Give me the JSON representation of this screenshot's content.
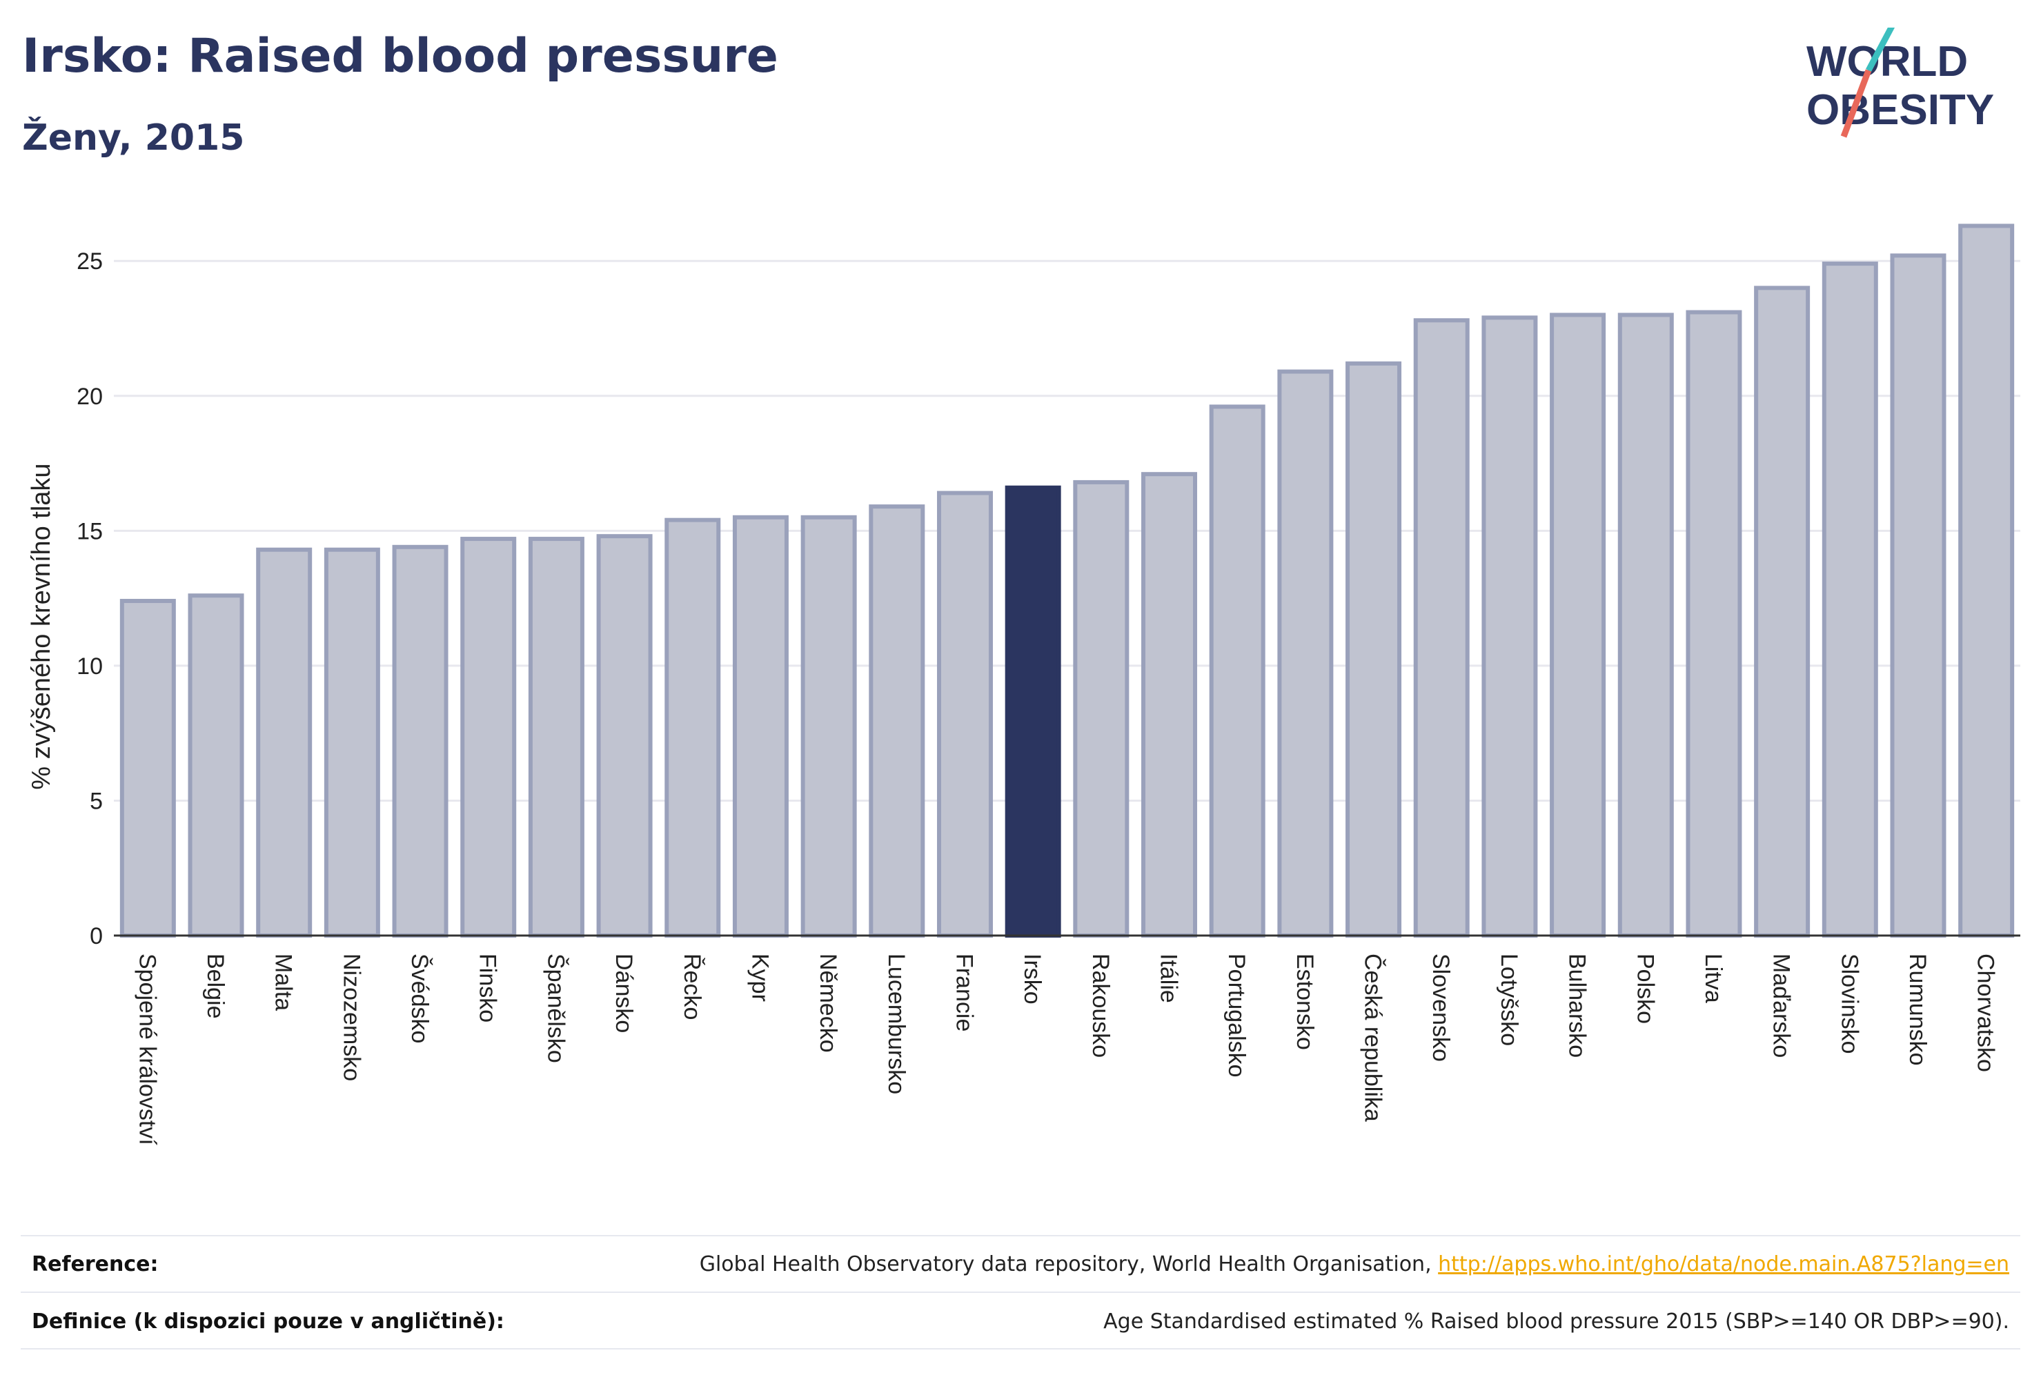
{
  "header": {
    "title": "Irsko: Raised blood pressure",
    "subtitle": "Ženy, 2015"
  },
  "logo": {
    "line1": "WORLD",
    "line2": "OBESITY",
    "colors": {
      "text": "#2b3560",
      "slash_teal": "#3cbfbf",
      "slash_coral": "#e8685a"
    }
  },
  "colors": {
    "bar_fill": "#c0c3d0",
    "bar_stroke": "#9aa1bb",
    "highlight_fill": "#2b3560",
    "grid": "#e8e8ee",
    "axis": "#333333"
  },
  "chart_data": {
    "type": "bar",
    "ylabel": "% zvýšeného krevního tlaku",
    "ylim": [
      0,
      27
    ],
    "yticks": [
      0,
      5,
      10,
      15,
      20,
      25
    ],
    "grid": true,
    "highlight": "Irsko",
    "categories": [
      "Spojené království",
      "Belgie",
      "Malta",
      "Nizozemsko",
      "Švédsko",
      "Finsko",
      "Španělsko",
      "Dánsko",
      "Řecko",
      "Kypr",
      "Německo",
      "Lucembursko",
      "Francie",
      "Irsko",
      "Rakousko",
      "Itálie",
      "Portugalsko",
      "Estonsko",
      "Česká republika",
      "Slovensko",
      "Lotyšsko",
      "Bulharsko",
      "Polsko",
      "Litva",
      "Maďarsko",
      "Slovinsko",
      "Rumunsko",
      "Chorvatsko"
    ],
    "values": [
      12.4,
      12.6,
      14.3,
      14.3,
      14.4,
      14.7,
      14.7,
      14.8,
      15.4,
      15.5,
      15.5,
      15.9,
      16.4,
      16.6,
      16.8,
      17.1,
      19.6,
      20.9,
      21.2,
      22.8,
      22.9,
      23.0,
      23.0,
      23.1,
      24.0,
      24.9,
      25.2,
      26.3
    ]
  },
  "footer": {
    "reference_label": "Reference:",
    "reference_text": "Global Health Observatory data repository, World Health Organisation, ",
    "reference_link": "http://apps.who.int/gho/data/node.main.A875?lang=en",
    "definition_label": "Definice (k dispozici pouze v angličtině):",
    "definition_text": "Age Standardised estimated % Raised blood pressure 2015 (SBP>=140 OR DBP>=90)."
  }
}
